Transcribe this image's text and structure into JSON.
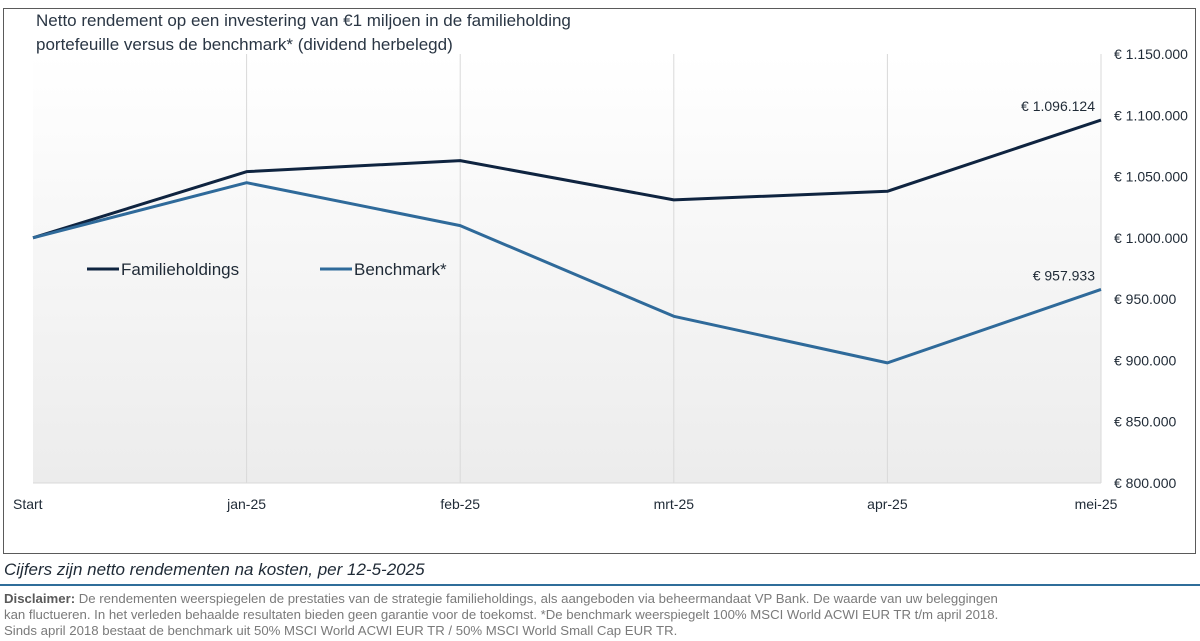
{
  "chart_data": {
    "type": "line",
    "title_line1": "Netto rendement op een investering van €1 miljoen in de familieholding",
    "title_line2": "portefeuille versus de benchmark* (dividend herbelegd)",
    "categories": [
      "Start",
      "jan-25",
      "feb-25",
      "mrt-25",
      "apr-25",
      "mei-25"
    ],
    "series": [
      {
        "name": "Familieholdings",
        "color": "#0f2440",
        "values": [
          1000000,
          1054000,
          1063000,
          1031000,
          1038000,
          1096124
        ]
      },
      {
        "name": "Benchmark*",
        "color": "#2f6a9a",
        "values": [
          1000000,
          1045000,
          1010000,
          936000,
          898000,
          957933
        ]
      }
    ],
    "end_labels": [
      "€ 1.096.124",
      "€ 957.933"
    ],
    "ylim": [
      800000,
      1150000
    ],
    "y_ticks": [
      {
        "value": 1150000,
        "label": "€ 1.150.000"
      },
      {
        "value": 1100000,
        "label": "€ 1.100.000"
      },
      {
        "value": 1050000,
        "label": "€ 1.050.000"
      },
      {
        "value": 1000000,
        "label": "€ 1.000.000"
      },
      {
        "value": 950000,
        "label": "€ 950.000"
      },
      {
        "value": 900000,
        "label": "€ 900.000"
      },
      {
        "value": 850000,
        "label": "€ 850.000"
      },
      {
        "value": 800000,
        "label": "€ 800.000"
      }
    ],
    "y_axis_position": "right",
    "grid": "vertical",
    "legend_position": "inside-left"
  },
  "footnote": "Cijfers zijn netto rendementen na kosten, per 12-5-2025",
  "disclaimer": {
    "label": "Disclaimer:",
    "line1": " De rendementen weerspiegelen de prestaties van de strategie familieholdings, als aangeboden via beheermandaat VP Bank. De waarde van uw beleggingen",
    "line2": "kan fluctueren. In het verleden behaalde resultaten bieden geen garantie voor de toekomst. *De benchmark weerspiegelt 100% MSCI World ACWI EUR TR t/m april 2018.",
    "line3": "Sinds april 2018 bestaat de benchmark uit 50% MSCI World ACWI EUR TR /  50% MSCI World Small Cap EUR TR."
  }
}
